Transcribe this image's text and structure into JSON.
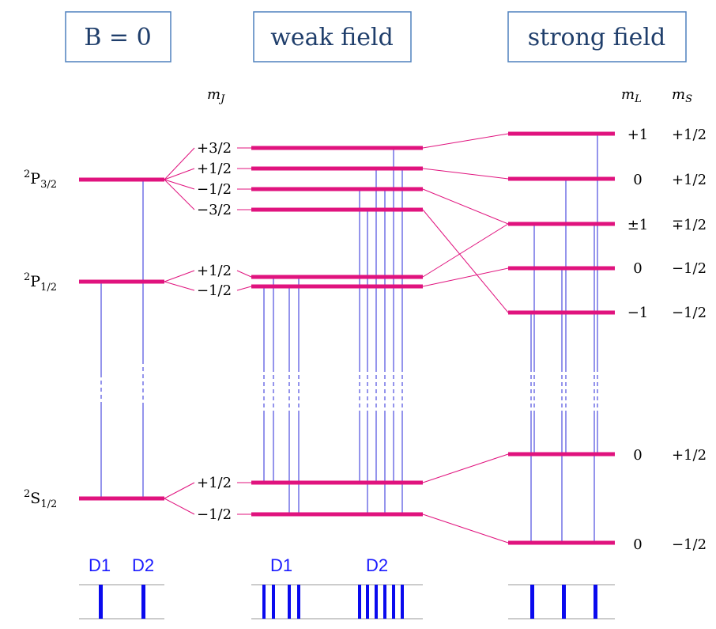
{
  "headers": {
    "b0": "B = 0",
    "weak": "weak field",
    "strong": "strong field"
  },
  "column_labels": {
    "mj": "m_J",
    "ml": "m_L",
    "ms": "m_S"
  },
  "left_states": {
    "p32": "2P3/2",
    "p12": "2P1/2",
    "s12": "2S1/2"
  },
  "weak_mj_labels": [
    "+3/2",
    "+1/2",
    "−1/2",
    "−3/2",
    "+1/2",
    "−1/2",
    "+1/2",
    "−1/2"
  ],
  "strong_ml_labels": [
    "+1",
    "0",
    "±1",
    "0",
    "−1",
    "0",
    "0"
  ],
  "strong_ms_labels": [
    "+1/2",
    "+1/2",
    "∓1/2",
    "−1/2",
    "−1/2",
    "+1/2",
    "−1/2"
  ],
  "spectrum_labels": {
    "b0_d1": "D1",
    "b0_d2": "D2",
    "weak_d1": "D1",
    "weak_d2": "D2"
  },
  "colors": {
    "level": "#e0137e",
    "connector": "#e0137e",
    "transition": "#2a2ad8",
    "spectrum": "#0a0aee",
    "box_border": "#4f81bd",
    "box_text": "#1f3e6b"
  }
}
